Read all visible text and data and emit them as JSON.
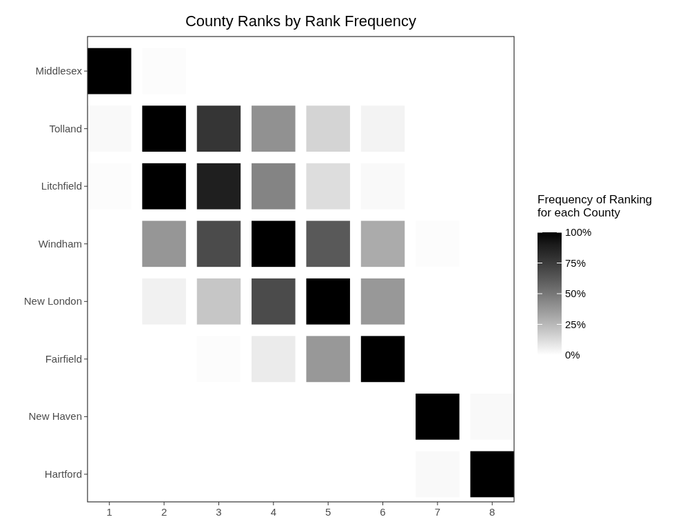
{
  "chart_data": {
    "type": "heatmap",
    "title": "County Ranks by Rank Frequency",
    "legend_title": "Frequency of Ranking\nfor each County",
    "categories": [
      "1",
      "2",
      "3",
      "4",
      "5",
      "6",
      "7",
      "8"
    ],
    "y_categories": [
      "Middlesex",
      "Tolland",
      "Litchfield",
      "Windham",
      "New London",
      "Fairfield",
      "New Haven",
      "Hartford"
    ],
    "cells": [
      [
        100,
        1,
        null,
        null,
        null,
        null,
        null,
        null
      ],
      [
        2,
        100,
        78,
        40,
        15,
        4,
        null,
        null
      ],
      [
        1,
        100,
        88,
        45,
        12,
        2,
        null,
        null
      ],
      [
        null,
        38,
        68,
        100,
        62,
        30,
        1,
        null
      ],
      [
        null,
        5,
        20,
        68,
        100,
        37,
        null,
        null
      ],
      [
        null,
        null,
        1,
        7,
        37,
        100,
        null,
        null
      ],
      [
        null,
        null,
        null,
        null,
        null,
        null,
        100,
        2
      ],
      [
        null,
        null,
        null,
        null,
        null,
        null,
        2,
        100
      ]
    ],
    "clim": [
      0,
      100
    ],
    "cticks": [
      {
        "value": 0,
        "label": "0%"
      },
      {
        "value": 25,
        "label": "25%"
      },
      {
        "value": 50,
        "label": "50%"
      },
      {
        "value": 75,
        "label": "75%"
      },
      {
        "value": 100,
        "label": "100%"
      }
    ]
  }
}
